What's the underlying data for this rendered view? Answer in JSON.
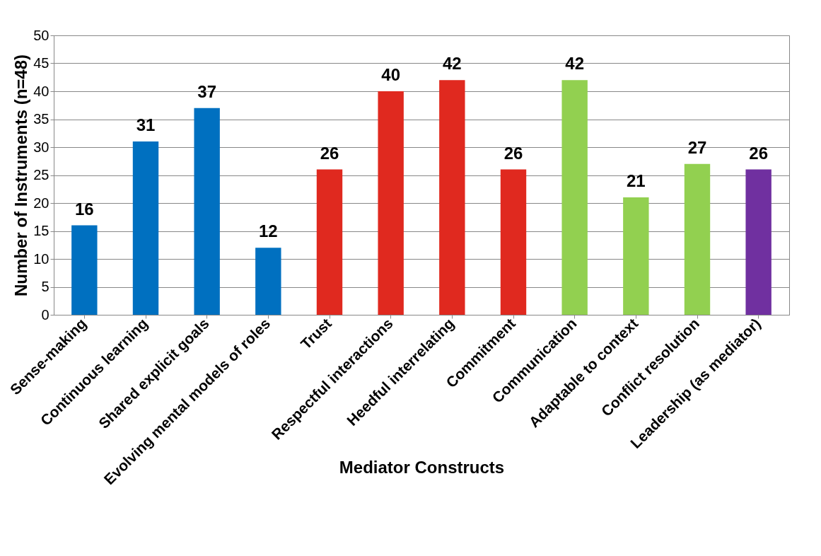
{
  "chart_data": {
    "type": "bar",
    "xlabel": "Mediator Constructs",
    "ylabel": "Number of Instruments (n=48)",
    "categories": [
      "Sense-making",
      "Continuous learning",
      "Shared explicit goals",
      "Evolving mental models of roles",
      "Trust",
      "Respectful interactions",
      "Heedful interrelating",
      "Commitment",
      "Communication",
      "Adaptable to context",
      "Conflict resolution",
      "Leadership (as mediator)"
    ],
    "values": [
      16,
      31,
      37,
      12,
      26,
      40,
      42,
      26,
      42,
      21,
      27,
      26
    ],
    "colors": [
      "#0070c0",
      "#0070c0",
      "#0070c0",
      "#0070c0",
      "#e0291f",
      "#e0291f",
      "#e0291f",
      "#e0291f",
      "#92d050",
      "#92d050",
      "#92d050",
      "#7030a0"
    ],
    "ylim": [
      0,
      50
    ],
    "yticks": [
      0,
      5,
      10,
      15,
      20,
      25,
      30,
      35,
      40,
      45,
      50
    ],
    "grid": "y",
    "data_labels": true
  }
}
